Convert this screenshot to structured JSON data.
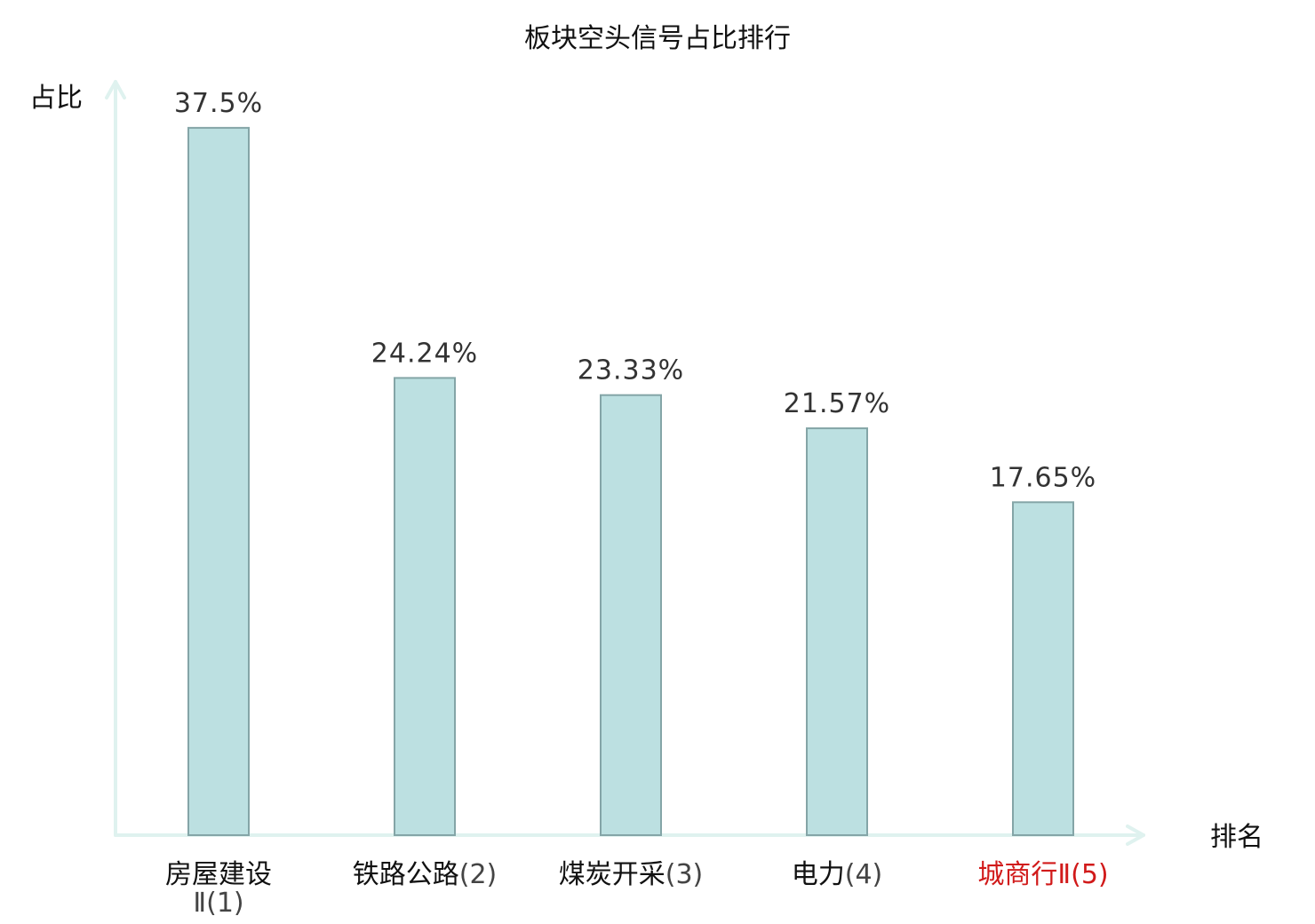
{
  "colors": {
    "bar_fill": "#bce0e1",
    "bar_stroke": "#84a5a7",
    "axis": "#dff2ef",
    "text": "#111111",
    "value_text": "#333333",
    "rank_text": "#444444",
    "highlight": "#d11a1a"
  },
  "chart_data": {
    "type": "bar",
    "title": "板块空头信号占比排行",
    "xlabel": "排名",
    "ylabel": "占比",
    "grid": false,
    "ylim": [
      0,
      40
    ],
    "categories": [
      {
        "name": "房屋建设",
        "rank": "Ⅱ(1)",
        "highlight": false
      },
      {
        "name": "铁路公路",
        "rank": "(2)",
        "highlight": false
      },
      {
        "name": "煤炭开采",
        "rank": "(3)",
        "highlight": false
      },
      {
        "name": "电力",
        "rank": "(4)",
        "highlight": false
      },
      {
        "name": "城商行Ⅱ",
        "rank": "(5)",
        "highlight": true
      }
    ],
    "values": [
      37.5,
      24.24,
      23.33,
      21.57,
      17.65
    ],
    "value_labels": [
      "37.5%",
      "24.24%",
      "23.33%",
      "21.57%",
      "17.65%"
    ]
  }
}
